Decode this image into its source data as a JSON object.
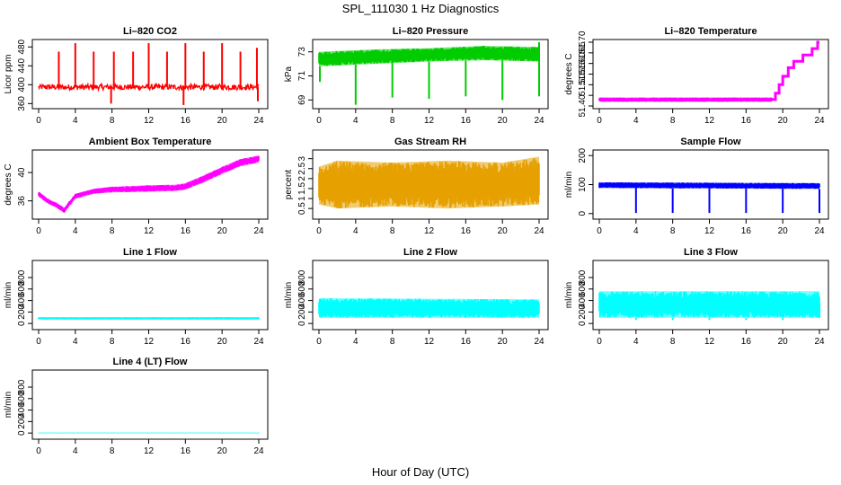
{
  "page": {
    "title": "SPL_111030  1 Hz Diagnostics",
    "xlabel": "Hour of Day (UTC)"
  },
  "chart_data": [
    {
      "type": "line",
      "title": "Li–820 CO2",
      "ylabel": "Licor ppm",
      "color": "#ff0000",
      "xlim": [
        0,
        24
      ],
      "ylim": [
        355,
        490
      ],
      "yticks": [
        360,
        400,
        440,
        480
      ],
      "xticks": [
        0,
        4,
        8,
        12,
        16,
        20,
        24
      ],
      "baseline": 395,
      "noise": 6,
      "spikes": [
        {
          "x": 2.2,
          "y": 470
        },
        {
          "x": 4.0,
          "y": 488
        },
        {
          "x": 6.0,
          "y": 470
        },
        {
          "x": 8.2,
          "y": 470
        },
        {
          "x": 10.3,
          "y": 470
        },
        {
          "x": 12.0,
          "y": 488
        },
        {
          "x": 14.0,
          "y": 470
        },
        {
          "x": 16.0,
          "y": 488
        },
        {
          "x": 18.0,
          "y": 470
        },
        {
          "x": 20.0,
          "y": 488
        },
        {
          "x": 22.0,
          "y": 470
        },
        {
          "x": 23.8,
          "y": 478
        }
      ],
      "dips": [
        {
          "x": 7.9,
          "y": 360
        },
        {
          "x": 15.8,
          "y": 357
        },
        {
          "x": 23.9,
          "y": 365
        }
      ]
    },
    {
      "type": "line",
      "title": "Li–820 Pressure",
      "ylabel": "kPa",
      "color": "#00cc00",
      "xlim": [
        0,
        24
      ],
      "ylim": [
        68.5,
        73.8
      ],
      "yticks": [
        69,
        71,
        73
      ],
      "xticks": [
        0,
        4,
        8,
        12,
        16,
        20,
        24
      ],
      "band": [
        {
          "x": 0,
          "lo": 71.8,
          "hi": 73.0
        },
        {
          "x": 6,
          "lo": 72.0,
          "hi": 73.2
        },
        {
          "x": 12,
          "lo": 72.2,
          "hi": 73.3
        },
        {
          "x": 18,
          "lo": 72.3,
          "hi": 73.5
        },
        {
          "x": 24,
          "lo": 72.2,
          "hi": 73.4
        }
      ],
      "dips": [
        {
          "x": 4.0,
          "y": 68.6
        },
        {
          "x": 8.0,
          "y": 69.2
        },
        {
          "x": 12.0,
          "y": 69.1
        },
        {
          "x": 16.0,
          "y": 69.3
        },
        {
          "x": 20.0,
          "y": 69.0
        },
        {
          "x": 24.0,
          "y": 69.3
        }
      ],
      "spikes": [
        {
          "x": 0.1,
          "y": 70.5
        },
        {
          "x": 24.0,
          "y": 73.8
        }
      ]
    },
    {
      "type": "line",
      "title": "Li–820 Temperature",
      "ylabel": "degrees C",
      "color": "#ff00ff",
      "xlim": [
        0,
        24
      ],
      "ylim": [
        51.4,
        51.7
      ],
      "yticks": [
        51.4,
        51.45,
        51.5,
        51.55,
        51.6,
        51.65,
        51.7
      ],
      "ytick_labels": [
        "51.40",
        "",
        "51.50",
        "51.55",
        "51.60",
        "51.65",
        "51.70"
      ],
      "xticks": [
        0,
        4,
        8,
        12,
        16,
        20,
        24
      ],
      "band": [
        {
          "x": 0,
          "lo": 51.42,
          "hi": 51.44
        },
        {
          "x": 18.8,
          "lo": 51.42,
          "hi": 51.44
        }
      ],
      "steps": [
        {
          "x": 18.8,
          "y": 51.43
        },
        {
          "x": 19.2,
          "y": 51.46
        },
        {
          "x": 19.6,
          "y": 51.5
        },
        {
          "x": 20.0,
          "y": 51.54
        },
        {
          "x": 20.6,
          "y": 51.58
        },
        {
          "x": 21.2,
          "y": 51.61
        },
        {
          "x": 22.2,
          "y": 51.64
        },
        {
          "x": 23.2,
          "y": 51.67
        },
        {
          "x": 23.8,
          "y": 51.7
        }
      ]
    },
    {
      "type": "line",
      "title": "Ambient Box Temperature",
      "ylabel": "degrees C",
      "color": "#ff00ff",
      "xlim": [
        0,
        24
      ],
      "ylim": [
        33.8,
        42.8
      ],
      "yticks": [
        36,
        40
      ],
      "xticks": [
        0,
        4,
        8,
        12,
        16,
        20,
        24
      ],
      "band": [
        {
          "x": 0,
          "lo": 36.6,
          "hi": 37.3
        },
        {
          "x": 1.0,
          "lo": 35.6,
          "hi": 36.3
        },
        {
          "x": 2.0,
          "lo": 35.0,
          "hi": 35.7
        },
        {
          "x": 2.8,
          "lo": 34.3,
          "hi": 35.0
        },
        {
          "x": 3.3,
          "lo": 35.2,
          "hi": 35.9
        },
        {
          "x": 4.0,
          "lo": 36.3,
          "hi": 37.0
        },
        {
          "x": 6.0,
          "lo": 37.0,
          "hi": 37.7
        },
        {
          "x": 8.0,
          "lo": 37.2,
          "hi": 38.0
        },
        {
          "x": 12.0,
          "lo": 37.3,
          "hi": 38.2
        },
        {
          "x": 15.0,
          "lo": 37.4,
          "hi": 38.3
        },
        {
          "x": 16.0,
          "lo": 37.6,
          "hi": 38.5
        },
        {
          "x": 18.0,
          "lo": 38.6,
          "hi": 39.6
        },
        {
          "x": 20.0,
          "lo": 39.8,
          "hi": 40.8
        },
        {
          "x": 22.0,
          "lo": 40.9,
          "hi": 41.9
        },
        {
          "x": 24.0,
          "lo": 41.4,
          "hi": 42.4
        }
      ]
    },
    {
      "type": "line",
      "title": "Gas Stream RH",
      "ylabel": "percent",
      "color": "#e6a000",
      "xlim": [
        0,
        24
      ],
      "ylim": [
        0.1,
        3.3
      ],
      "yticks": [
        0.5,
        1.0,
        1.5,
        2.0,
        2.5,
        3.0
      ],
      "xticks": [
        0,
        4,
        8,
        12,
        16,
        20,
        24
      ],
      "band": [
        {
          "x": 0,
          "lo": 0.7,
          "hi": 2.6
        },
        {
          "x": 2,
          "lo": 0.5,
          "hi": 2.9
        },
        {
          "x": 8,
          "lo": 0.6,
          "hi": 2.8
        },
        {
          "x": 14,
          "lo": 0.5,
          "hi": 2.9
        },
        {
          "x": 20,
          "lo": 0.6,
          "hi": 2.8
        },
        {
          "x": 24,
          "lo": 0.7,
          "hi": 3.1
        }
      ]
    },
    {
      "type": "line",
      "title": "Sample Flow",
      "ylabel": "ml/min",
      "color": "#0000ff",
      "xlim": [
        0,
        24
      ],
      "ylim": [
        -10,
        210
      ],
      "yticks": [
        0,
        100,
        200
      ],
      "xticks": [
        0,
        4,
        8,
        12,
        16,
        20,
        24
      ],
      "band": [
        {
          "x": 0,
          "lo": 88,
          "hi": 108
        },
        {
          "x": 24,
          "lo": 85,
          "hi": 105
        }
      ],
      "dips": [
        {
          "x": 4.0,
          "y": 2
        },
        {
          "x": 8.0,
          "y": 2
        },
        {
          "x": 12.0,
          "y": 2
        },
        {
          "x": 16.0,
          "y": 2
        },
        {
          "x": 20.0,
          "y": 2
        },
        {
          "x": 24.0,
          "y": 2
        }
      ]
    },
    {
      "type": "line",
      "title": "Line 1 Flow",
      "ylabel": "ml/min",
      "color": "#00ffff",
      "xlim": [
        0,
        24
      ],
      "ylim": [
        -60,
        1050
      ],
      "yticks": [
        0,
        200,
        400,
        600,
        800
      ],
      "xticks": [
        0,
        4,
        8,
        12,
        16,
        20,
        24
      ],
      "band": [
        {
          "x": 0,
          "lo": 70,
          "hi": 110
        },
        {
          "x": 24,
          "lo": 70,
          "hi": 110
        }
      ]
    },
    {
      "type": "line",
      "title": "Line 2 Flow",
      "ylabel": "ml/min",
      "color": "#00ffff",
      "xlim": [
        0,
        24
      ],
      "ylim": [
        -60,
        1050
      ],
      "yticks": [
        0,
        200,
        400,
        600,
        800
      ],
      "xticks": [
        0,
        4,
        8,
        12,
        16,
        20,
        24
      ],
      "band": [
        {
          "x": 0,
          "lo": 100,
          "hi": 440
        },
        {
          "x": 24,
          "lo": 100,
          "hi": 420
        }
      ],
      "dips": [
        {
          "x": 4.0,
          "y": 380
        },
        {
          "x": 8.0,
          "y": 380
        },
        {
          "x": 12.0,
          "y": 380
        },
        {
          "x": 16.0,
          "y": 380
        },
        {
          "x": 20.0,
          "y": 380
        }
      ]
    },
    {
      "type": "line",
      "title": "Line 3 Flow",
      "ylabel": "ml/min",
      "color": "#00ffff",
      "xlim": [
        0,
        24
      ],
      "ylim": [
        -60,
        1050
      ],
      "yticks": [
        0,
        200,
        400,
        600,
        800
      ],
      "xticks": [
        0,
        4,
        8,
        12,
        16,
        20,
        24
      ],
      "band": [
        {
          "x": 0,
          "lo": 100,
          "hi": 560
        },
        {
          "x": 24,
          "lo": 100,
          "hi": 560
        }
      ],
      "dips": [
        {
          "x": 4.0,
          "y": 60
        },
        {
          "x": 8.0,
          "y": 60
        },
        {
          "x": 12.0,
          "y": 60
        },
        {
          "x": 16.0,
          "y": 60
        },
        {
          "x": 20.0,
          "y": 60
        },
        {
          "x": 24.0,
          "y": 330
        }
      ]
    },
    {
      "type": "line",
      "title": "Line 4 (LT) Flow",
      "ylabel": "ml/min",
      "color": "#00ffff",
      "xlim": [
        0,
        24
      ],
      "ylim": [
        -60,
        1050
      ],
      "yticks": [
        0,
        200,
        400,
        600,
        800
      ],
      "xticks": [
        0,
        4,
        8,
        12,
        16,
        20,
        24
      ],
      "band": [
        {
          "x": 0,
          "lo": -5,
          "hi": 8
        },
        {
          "x": 24,
          "lo": -5,
          "hi": 8
        }
      ]
    }
  ]
}
